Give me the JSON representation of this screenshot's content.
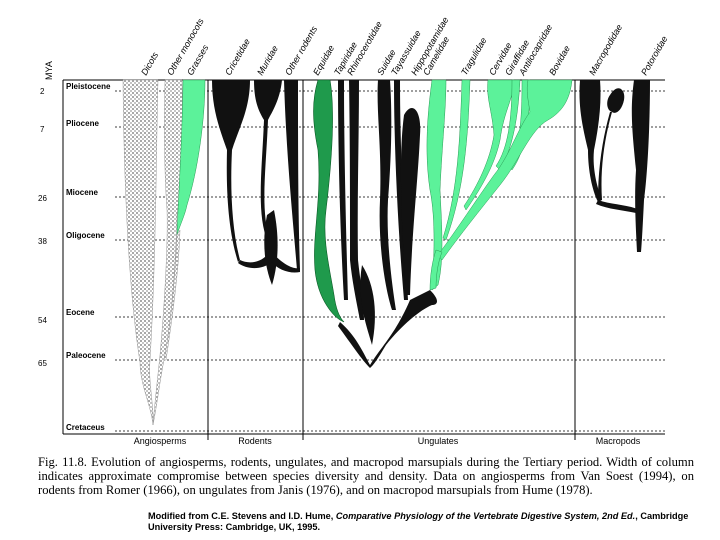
{
  "axis": {
    "title": "MYA"
  },
  "epochs": [
    {
      "name": "Pleistocene",
      "mya_label": "2"
    },
    {
      "name": "Pliocene",
      "mya_label": "7"
    },
    {
      "name": "Miocene",
      "mya_label": "26"
    },
    {
      "name": "Oligocene",
      "mya_label": "38"
    },
    {
      "name": "Eocene",
      "mya_label": "54"
    },
    {
      "name": "Paleocene",
      "mya_label": "65"
    },
    {
      "name": "Cretaceus",
      "mya_label": ""
    }
  ],
  "taxa": [
    "Dicots",
    "Other monocots",
    "Grasses",
    "Cricetidae",
    "Muridae",
    "Other rodents",
    "Equidae",
    "Tapiridae",
    "Rhinocerotidae",
    "Suidae",
    "Tayassuidae",
    "Hippopotamidae",
    "Camelidae",
    "Tragulidae",
    "Cervidae",
    "Giraffidae",
    "Antilocapridae",
    "Bovidae",
    "Macropodidae",
    "Potoroidae"
  ],
  "groups": [
    "Angiosperms",
    "Rodents",
    "Ungulates",
    "Macropods"
  ],
  "colors": {
    "green_light": "#5cf29a",
    "green_dark": "#1f9a4c",
    "stipple": "#b8b8b8",
    "black": "#111111"
  },
  "caption": {
    "text": "Fig. 11.8. Evolution of angiosperms, rodents, ungulates, and macropod marsupials during the Tertiary period. Width of column indicates approximate compromise between species diversity and density. Data on angiosperms from Van Soest (1994), on rodents from Romer (1966), on ungulates from Janis (1976), and on macropod marsupials from Hume (1978)."
  },
  "credit": {
    "prefix": "Modified from C.E. Stevens and I.D. Hume, ",
    "title": "Comparative Physiology of the Vertebrate Digestive System, 2nd Ed.",
    "suffix": ", Cambridge University Press: Cambridge, UK, 1995."
  }
}
